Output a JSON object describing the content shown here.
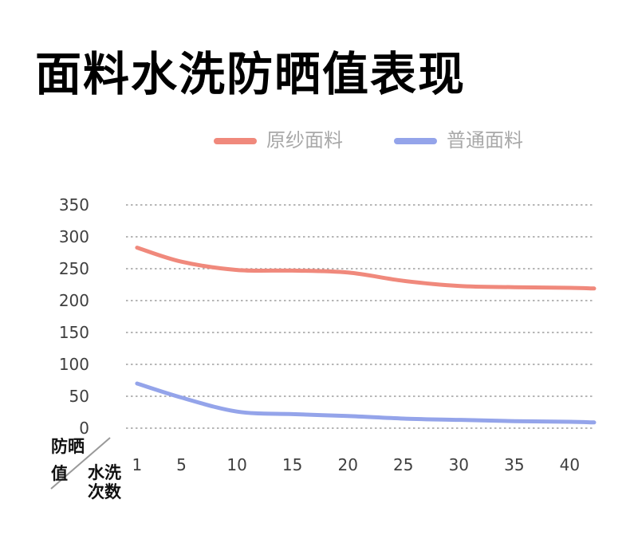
{
  "title": "面料水洗防晒值表现",
  "axes": {
    "y_unit_lines": [
      "防晒",
      "值"
    ],
    "x_unit_lines": [
      "水洗",
      "次数"
    ],
    "y_ticks": [
      "350",
      "300",
      "250",
      "200",
      "150",
      "100",
      "50",
      "0"
    ],
    "x_ticks": [
      "1",
      "5",
      "10",
      "15",
      "20",
      "25",
      "30",
      "35",
      "40"
    ]
  },
  "chart_data": {
    "type": "line",
    "title": "面料水洗防晒值表现",
    "xlabel": "水洗次数",
    "ylabel": "防晒值",
    "x": [
      1,
      5,
      10,
      15,
      20,
      25,
      30,
      35,
      40
    ],
    "series": [
      {
        "name": "原纱面料",
        "color": "#f0897c",
        "values": [
          283,
          261,
          248,
          247,
          244,
          231,
          223,
          221,
          220
        ]
      },
      {
        "name": "普通面料",
        "color": "#94a4ea",
        "values": [
          70,
          48,
          26,
          22,
          19,
          15,
          13,
          11,
          10
        ]
      }
    ],
    "ylim": [
      0,
      350
    ],
    "y_tick_step": 50,
    "xlim": [
      0,
      42.2
    ],
    "line_extends_to_x": 42.2,
    "grid": "horizontal-dotted",
    "legend_position": "top-center",
    "smooth": true
  },
  "colors": {
    "background": "#ffffff",
    "grid_line": "#8a8a8a",
    "tick_label": "#3f3f3f",
    "legend_label": "#a8a8a8",
    "unit_label": "#111111",
    "slash": "#999999",
    "series_1": "#f0897c",
    "series_2": "#94a4ea"
  }
}
